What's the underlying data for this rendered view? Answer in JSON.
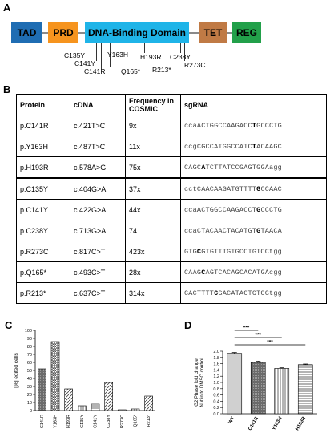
{
  "panels": {
    "a": "A",
    "b": "B",
    "c": "C",
    "d": "D"
  },
  "domains": [
    {
      "label": "TAD",
      "color": "#1f6db3"
    },
    {
      "label": "PRD",
      "color": "#f6941e"
    },
    {
      "label": "DNA-Binding Domain",
      "color": "#1fb4e8"
    },
    {
      "label": "TET",
      "color": "#c07a45"
    },
    {
      "label": "REG",
      "color": "#22a04a"
    }
  ],
  "mutations": [
    "C135Y",
    "C141Y",
    "C141R",
    "Y163H",
    "Q165*",
    "H193R",
    "R213*",
    "C238Y",
    "R273C"
  ],
  "table": {
    "headers": [
      "Protein",
      "cDNA",
      "Frequency in COSMIC",
      "sgRNA"
    ],
    "rows": [
      {
        "protein": "p.C141R",
        "cdna": "c.421T>C",
        "freq": "9x",
        "pre": "ccaACTGGCCAAGACC",
        "mut": "T",
        "post": "GCCCTG"
      },
      {
        "protein": "p.Y163H",
        "cdna": "c.487T>C",
        "freq": "11x",
        "pre": "ccgCGCCATGGCCATC",
        "mut": "T",
        "post": "ACAAGC"
      },
      {
        "protein": "p.H193R",
        "cdna": "c.578A>G",
        "freq": "75x",
        "pre": "CAGC",
        "mut": "A",
        "post": "TCTTATCCGAGTGGAagg"
      },
      {
        "protein": "p.C135Y",
        "cdna": "c.404G>A",
        "freq": "37x",
        "pre": "cctCAACAAGATGTTTT",
        "mut": "G",
        "post": "CCAAC"
      },
      {
        "protein": "p.C141Y",
        "cdna": "c.422G>A",
        "freq": "44x",
        "pre": "ccaACTGGCCAAGACCT",
        "mut": "G",
        "post": "CCCTG"
      },
      {
        "protein": "p.C238Y",
        "cdna": "c.713G>A",
        "freq": "74",
        "pre": "ccaCTACAACTACATGT",
        "mut": "G",
        "post": "TAACA"
      },
      {
        "protein": "p.R273C",
        "cdna": "c.817C>T",
        "freq": "423x",
        "pre": "GTG",
        "mut": "C",
        "post": "GTGTTTGTGCCTGTCCtgg"
      },
      {
        "protein": "p.Q165*",
        "cdna": "c.493C>T",
        "freq": "28x",
        "pre": "CAAG",
        "mut": "C",
        "post": "AGTCACAGCACATGAcgg"
      },
      {
        "protein": "p.R213*",
        "cdna": "c.637C>T",
        "freq": "314x",
        "pre": "CACTTTT",
        "mut": "C",
        "post": "GACATAGTGTGGtgg"
      }
    ]
  },
  "chart_data": [
    {
      "type": "bar",
      "ylabel": "[%] edited cells",
      "categories": [
        "C141R",
        "Y163H",
        "H193R",
        "C135Y",
        "C141Y",
        "C238Y",
        "R273C",
        "Q165*",
        "R213*"
      ],
      "values": [
        52,
        86,
        27,
        6,
        8,
        35,
        1,
        2,
        18
      ],
      "ylim": [
        0,
        100
      ],
      "yticks": [
        0,
        10,
        20,
        30,
        40,
        50,
        60,
        70,
        80,
        90,
        100
      ]
    },
    {
      "type": "bar",
      "ylabel": "G2 Phase fold change Nutlin to DMSO control",
      "categories": [
        "WT",
        "C141R",
        "Y163H",
        "H193R"
      ],
      "values": [
        1.93,
        1.64,
        1.45,
        1.57
      ],
      "errors": [
        0.03,
        0.04,
        0.02,
        0.02
      ],
      "ylim": [
        0,
        2.0
      ],
      "yticks": [
        0.0,
        0.2,
        0.4,
        0.6,
        0.8,
        1.0,
        1.2,
        1.4,
        1.6,
        1.8,
        2.0
      ],
      "annotations": [
        "***",
        "***",
        "***"
      ]
    }
  ]
}
